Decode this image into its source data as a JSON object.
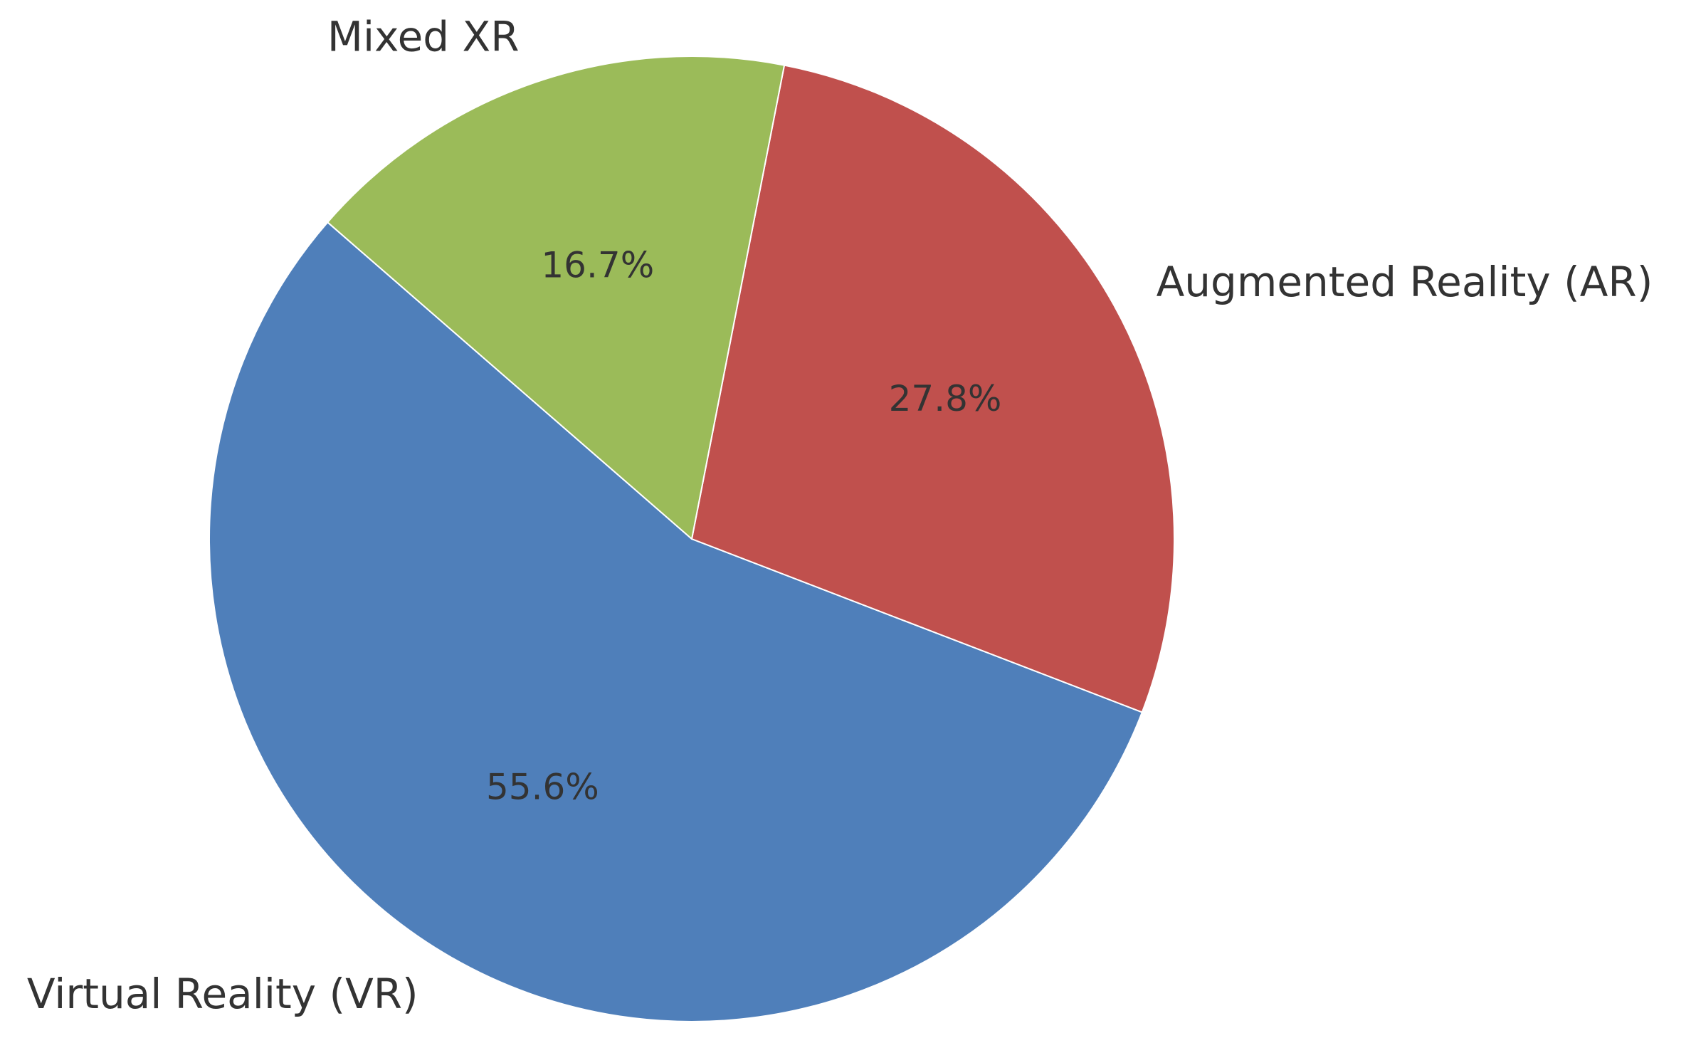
{
  "chart_data": {
    "type": "pie",
    "title": "",
    "slices": [
      {
        "label": "Virtual Reality (VR)",
        "value": 55.6,
        "pct_label": "55.6%",
        "color": "#4f7fba"
      },
      {
        "label": "Augmented Reality (AR)",
        "value": 27.8,
        "pct_label": "27.8%",
        "color": "#c0504d"
      },
      {
        "label": "Mixed XR",
        "value": 16.7,
        "pct_label": "16.7%",
        "color": "#9bbb59"
      }
    ],
    "start_angle_deg": 139,
    "direction": "counterclockwise",
    "legend": "none"
  }
}
